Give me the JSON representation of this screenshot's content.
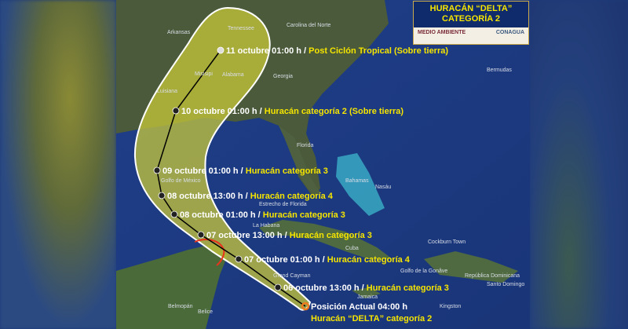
{
  "badge": {
    "title_line1": "HURACÁN “DELTA”",
    "title_line2": "CATEGORÍA 2",
    "logo_left": "MEDIO AMBIENTE",
    "logo_right": "CONAGUA"
  },
  "colors": {
    "cone": "#c8c83a",
    "track": "#000000",
    "label_yellow": "#f5e400",
    "label_white": "#ffffff",
    "current_position": "#f07a1e",
    "warning": "#e8341c"
  },
  "forecast": [
    {
      "time": "11 octubre 01:00 h",
      "status": "Post Ciclón Tropical (Sobre tierra)"
    },
    {
      "time": "10 octubre 01:00 h",
      "status": "Huracán categoría 2 (Sobre tierra)"
    },
    {
      "time": "09 octubre 01:00 h",
      "status": "Huracán categoría 3"
    },
    {
      "time": "08 octubre 13:00 h",
      "status": "Huracán categoría 4"
    },
    {
      "time": "08 octubre 01:00 h",
      "status": "Huracán categoría 3"
    },
    {
      "time": "07 octubre 13:00 h",
      "status": "Huracán categoría 3"
    },
    {
      "time": "07 octubre 01:00 h",
      "status": "Huracán categoría 4"
    },
    {
      "time": "06 octubre 13:00 h",
      "status": "Huracán categoría 3"
    }
  ],
  "sep": " / ",
  "current": {
    "line1": "Posición Actual 04:00 h",
    "line2": "Huracán “DELTA” categoría 2"
  },
  "places": [
    "Tennessee",
    "Carolina del Norte",
    "Arkansas",
    "Misisipi",
    "Alabama",
    "Georgia",
    "Luisiana",
    "Florida",
    "Golfo de México",
    "Bahamas",
    "Nasáu",
    "Estrecho de Florida",
    "La Habana",
    "Cuba",
    "Cockburn Town",
    "Golfo de la Gonâve",
    "República Dominicana",
    "Santo Domingo",
    "Jamaica",
    "Kingston",
    "Grand Cayman",
    "Belmopán",
    "Belice",
    "Bermudas"
  ]
}
